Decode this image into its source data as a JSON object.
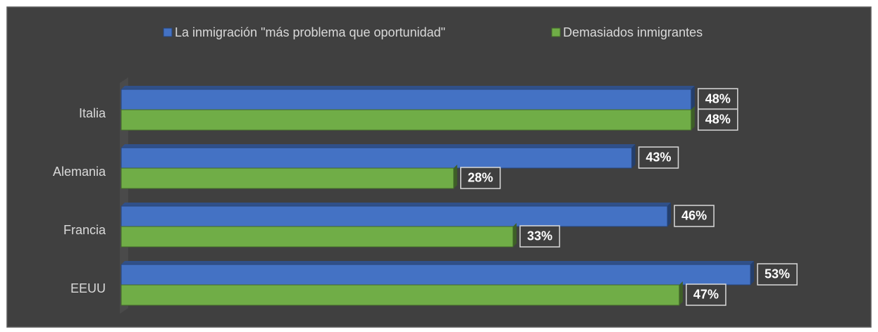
{
  "chart_data": {
    "type": "bar",
    "orientation": "horizontal",
    "categories": [
      "Italia",
      "Alemania",
      "Francia",
      "EEUU"
    ],
    "series": [
      {
        "name": "La inmigración \"más problema que oportunidad\"",
        "color": "#4472c4",
        "values": [
          48,
          43,
          46,
          53
        ],
        "value_labels": [
          "48%",
          "43%",
          "46%",
          "53%"
        ]
      },
      {
        "name": "Demasiados inmigrantes",
        "color": "#70ad47",
        "values": [
          48,
          28,
          33,
          47
        ],
        "value_labels": [
          "48%",
          "28%",
          "33%",
          "47%"
        ]
      }
    ],
    "legend": "top"
  }
}
